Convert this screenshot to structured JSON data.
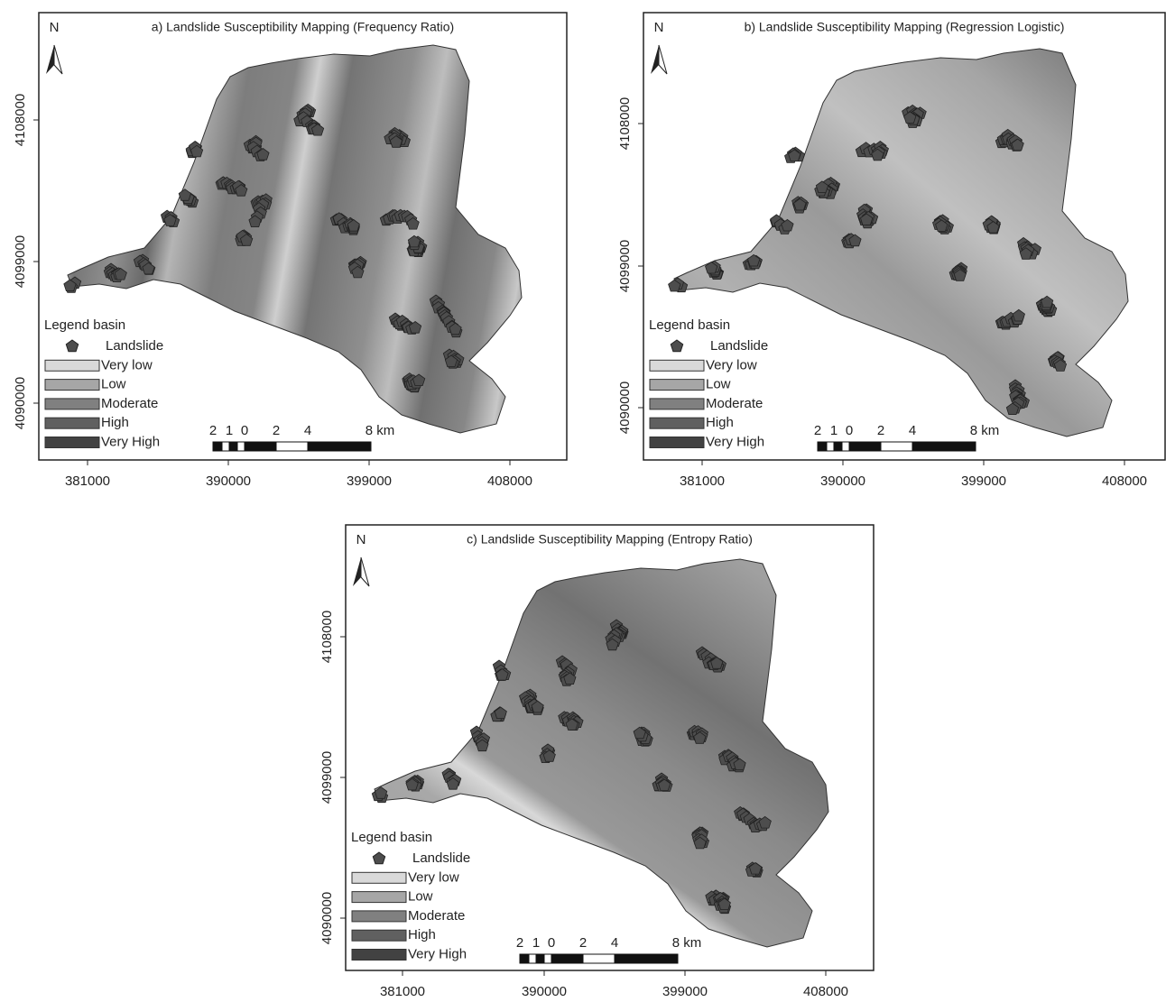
{
  "panels": [
    {
      "title": "a) Landslide Susceptibility Mapping (Frequency Ratio)",
      "north": "N",
      "x_ticks": [
        381000,
        390000,
        399000,
        408000
      ],
      "y_ticks": [
        4108000,
        4099000,
        4090000
      ],
      "legend": {
        "title": "Legend basin",
        "items": [
          "Landslide",
          "Very low",
          "Low",
          "Moderate",
          "High",
          "Very High"
        ]
      },
      "scale_labels": [
        "2",
        "1",
        "0",
        "2",
        "4",
        "8 km"
      ]
    },
    {
      "title": "b) Landslide Susceptibility Mapping (Regression Logistic)",
      "north": "N",
      "x_ticks": [
        381000,
        390000,
        399000,
        408000
      ],
      "y_ticks": [
        4108000,
        4099000,
        4090000
      ],
      "legend": {
        "title": "Legend basin",
        "items": [
          "Landslide",
          "Very low",
          "Low",
          "Moderate",
          "High",
          "Very High"
        ]
      },
      "scale_labels": [
        "2",
        "1",
        "0",
        "2",
        "4",
        "8 km"
      ]
    },
    {
      "title": "c) Landslide Susceptibility Mapping (Entropy Ratio)",
      "north": "N",
      "x_ticks": [
        381000,
        390000,
        399000,
        408000
      ],
      "y_ticks": [
        4108000,
        4099000,
        4090000
      ],
      "legend": {
        "title": "Legend basin",
        "items": [
          "Landslide",
          "Very low",
          "Low",
          "Moderate",
          "High",
          "Very High"
        ]
      },
      "scale_labels": [
        "2",
        "1",
        "0",
        "2",
        "4",
        "8 km"
      ]
    }
  ]
}
